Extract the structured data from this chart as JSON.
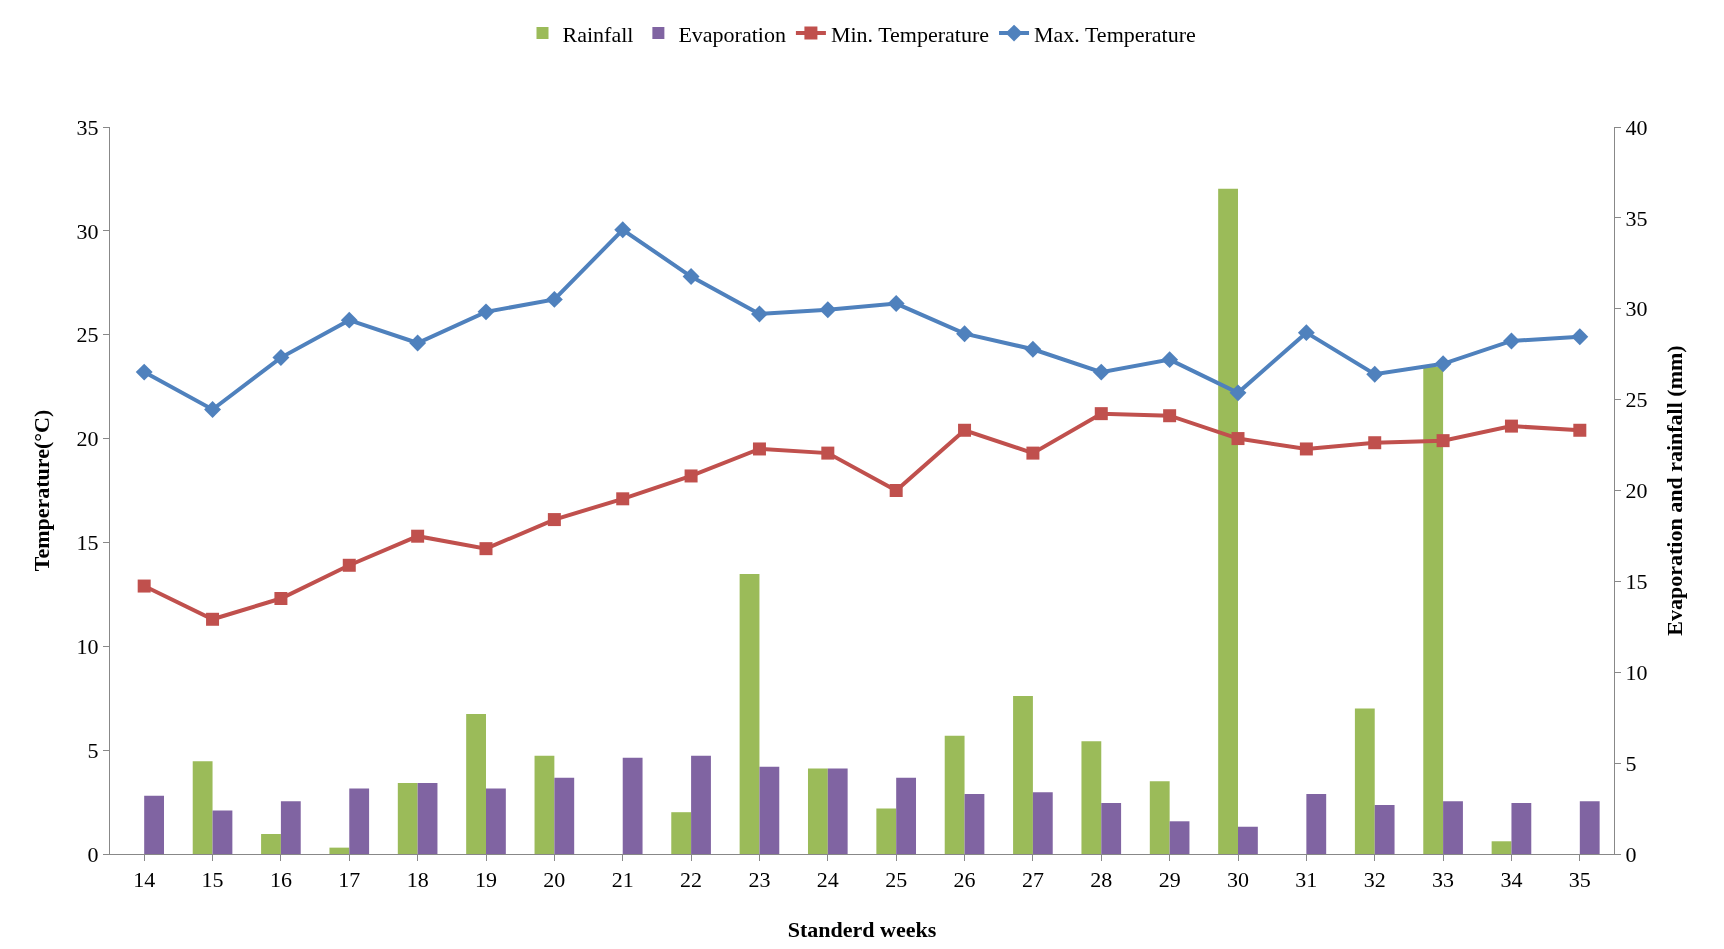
{
  "chart_data": {
    "type": "bar",
    "xlabel": "Standerd weeks",
    "ylabel": "Temperature(°C)",
    "y2label": "Evaporation and rainfall (mm)",
    "categories": [
      "14",
      "15",
      "16",
      "17",
      "18",
      "19",
      "20",
      "21",
      "22",
      "23",
      "24",
      "25",
      "26",
      "27",
      "28",
      "29",
      "30",
      "31",
      "32",
      "33",
      "34",
      "35"
    ],
    "series": [
      {
        "name": "Rainfall",
        "axis": "y2",
        "color": "#9bbb59",
        "values": [
          0,
          5.1,
          1.1,
          0.35,
          3.9,
          7.7,
          5.4,
          0,
          2.3,
          15.4,
          4.7,
          2.5,
          6.5,
          8.7,
          6.2,
          4.0,
          36.6,
          0,
          8.0,
          26.8,
          0.7,
          0
        ]
      },
      {
        "name": "Evaporation",
        "axis": "y2",
        "color": "#8064a2",
        "values": [
          3.2,
          2.4,
          2.9,
          3.6,
          3.9,
          3.6,
          4.2,
          5.3,
          5.4,
          4.8,
          4.7,
          4.2,
          3.3,
          3.4,
          2.8,
          1.8,
          1.5,
          3.3,
          2.7,
          2.9,
          2.8,
          2.9
        ]
      },
      {
        "name": "Min. Temperature",
        "type": "line",
        "marker": "square",
        "color": "#c0504d",
        "values": [
          12.9,
          11.3,
          12.3,
          13.9,
          15.3,
          14.7,
          16.1,
          17.1,
          18.2,
          19.5,
          19.3,
          17.5,
          20.4,
          19.3,
          21.2,
          21.1,
          20.0,
          19.5,
          19.8,
          19.9,
          20.6,
          20.4
        ]
      },
      {
        "name": "Max. Temperature",
        "type": "line",
        "marker": "diamond",
        "color": "#4f81bd",
        "values": [
          23.2,
          21.4,
          23.9,
          25.7,
          24.6,
          26.1,
          26.7,
          30.05,
          27.8,
          26.0,
          26.2,
          26.5,
          25.05,
          24.3,
          23.2,
          23.8,
          22.2,
          25.1,
          23.1,
          23.6,
          24.7,
          24.9
        ]
      }
    ],
    "ylim": [
      0,
      35
    ],
    "yticks": [
      0,
      5,
      10,
      15,
      20,
      25,
      30,
      35
    ],
    "y2lim": [
      0,
      40
    ],
    "y2ticks": [
      0,
      5,
      10,
      15,
      20,
      25,
      30,
      35,
      40
    ],
    "grid": false,
    "legend": "top",
    "line_style": "solid"
  }
}
